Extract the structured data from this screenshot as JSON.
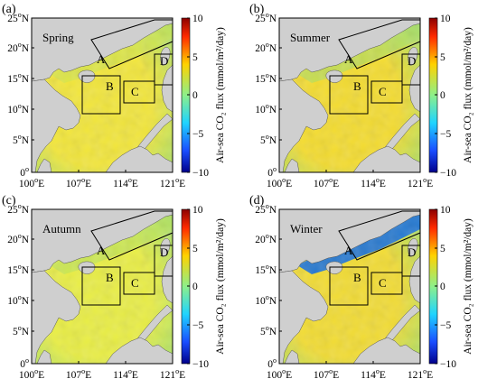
{
  "panels": [
    {
      "letter": "(a)",
      "season": "Spring",
      "tint": "#f2e63a",
      "tint2": "#cfe64f"
    },
    {
      "letter": "(b)",
      "season": "Summer",
      "tint": "#f4dc2f",
      "tint2": "#a8e066"
    },
    {
      "letter": "(c)",
      "season": "Autumn",
      "tint": "#e9ee44",
      "tint2": "#b9e45a"
    },
    {
      "letter": "(d)",
      "season": "Winter",
      "tint": "#f2dc33",
      "tint2": "#1c73d8"
    }
  ],
  "axes": {
    "y_ticks": [
      "25°N",
      "20°N",
      "15°N",
      "10°N",
      "5°N",
      "0°"
    ],
    "x_ticks": [
      "100°E",
      "107°E",
      "114°E",
      "121°E"
    ]
  },
  "colorbar": {
    "label": "Air-sea CO₂ flux (mmol/m²/day)",
    "ticks": [
      "10",
      "5",
      "0",
      "−5",
      "−10"
    ],
    "range": [
      -10,
      10
    ]
  },
  "regions": [
    "A",
    "B",
    "C",
    "D"
  ],
  "colors": {
    "land": "#cfcfcf",
    "ocean_base": "#9fe070",
    "border": "#000000"
  }
}
